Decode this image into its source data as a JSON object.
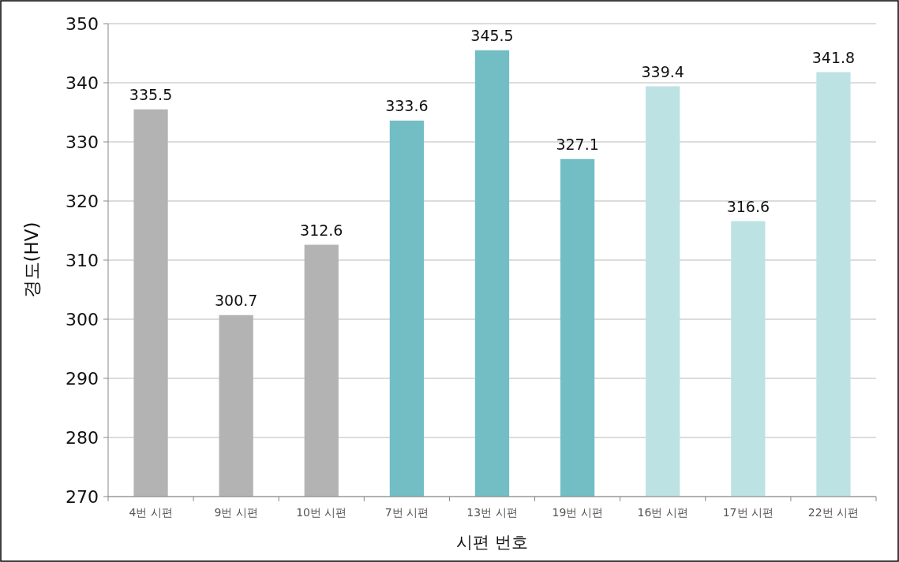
{
  "chart_data": {
    "type": "bar",
    "xlabel": "시편 번호",
    "ylabel": "경도(HV)",
    "categories": [
      "4번 시편",
      "9번 시편",
      "10번 시편",
      "7번 시편",
      "13번 시편",
      "19번 시편",
      "16번 시편",
      "17번 시편",
      "22번 시편"
    ],
    "values": [
      335.5,
      300.7,
      312.6,
      333.6,
      345.5,
      327.1,
      339.4,
      316.6,
      341.8
    ],
    "colors": [
      "#b3b3b3",
      "#b3b3b3",
      "#b3b3b3",
      "#72bec4",
      "#72bec4",
      "#72bec4",
      "#bde2e3",
      "#bde2e3",
      "#bde2e3"
    ],
    "ylim": [
      270,
      350
    ],
    "yticks": [
      270,
      280,
      290,
      300,
      310,
      320,
      330,
      340,
      350
    ],
    "grid": "y",
    "data_labels": true
  }
}
